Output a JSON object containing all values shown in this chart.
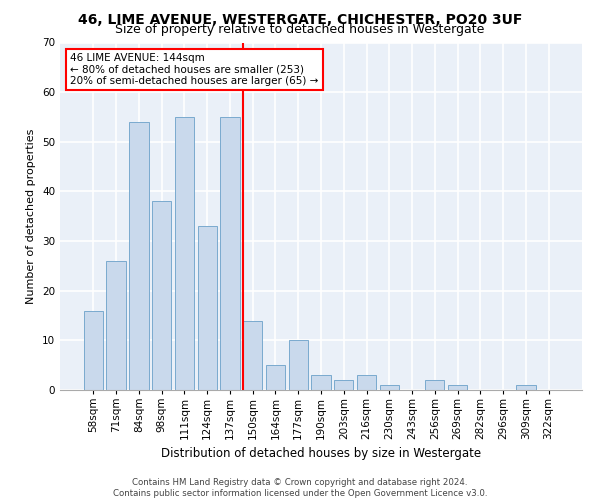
{
  "title": "46, LIME AVENUE, WESTERGATE, CHICHESTER, PO20 3UF",
  "subtitle": "Size of property relative to detached houses in Westergate",
  "xlabel": "Distribution of detached houses by size in Westergate",
  "ylabel": "Number of detached properties",
  "categories": [
    "58sqm",
    "71sqm",
    "84sqm",
    "98sqm",
    "111sqm",
    "124sqm",
    "137sqm",
    "150sqm",
    "164sqm",
    "177sqm",
    "190sqm",
    "203sqm",
    "216sqm",
    "230sqm",
    "243sqm",
    "256sqm",
    "269sqm",
    "282sqm",
    "296sqm",
    "309sqm",
    "322sqm"
  ],
  "values": [
    16,
    26,
    54,
    38,
    55,
    33,
    55,
    14,
    5,
    10,
    3,
    2,
    3,
    1,
    0,
    2,
    1,
    0,
    0,
    1,
    0
  ],
  "bar_color": "#c9d9ec",
  "bar_edge_color": "#7aaace",
  "vline_index": 7,
  "annotation_line1": "46 LIME AVENUE: 144sqm",
  "annotation_line2": "← 80% of detached houses are smaller (253)",
  "annotation_line3": "20% of semi-detached houses are larger (65) →",
  "annotation_box_color": "white",
  "annotation_box_edge_color": "red",
  "vline_color": "red",
  "ylim": [
    0,
    70
  ],
  "yticks": [
    0,
    10,
    20,
    30,
    40,
    50,
    60,
    70
  ],
  "background_color": "#eaf0f8",
  "grid_color": "white",
  "title_fontsize": 10,
  "subtitle_fontsize": 9,
  "xlabel_fontsize": 8.5,
  "ylabel_fontsize": 8,
  "tick_fontsize": 7.5,
  "annot_fontsize": 7.5,
  "footer_line1": "Contains HM Land Registry data © Crown copyright and database right 2024.",
  "footer_line2": "Contains public sector information licensed under the Open Government Licence v3.0."
}
